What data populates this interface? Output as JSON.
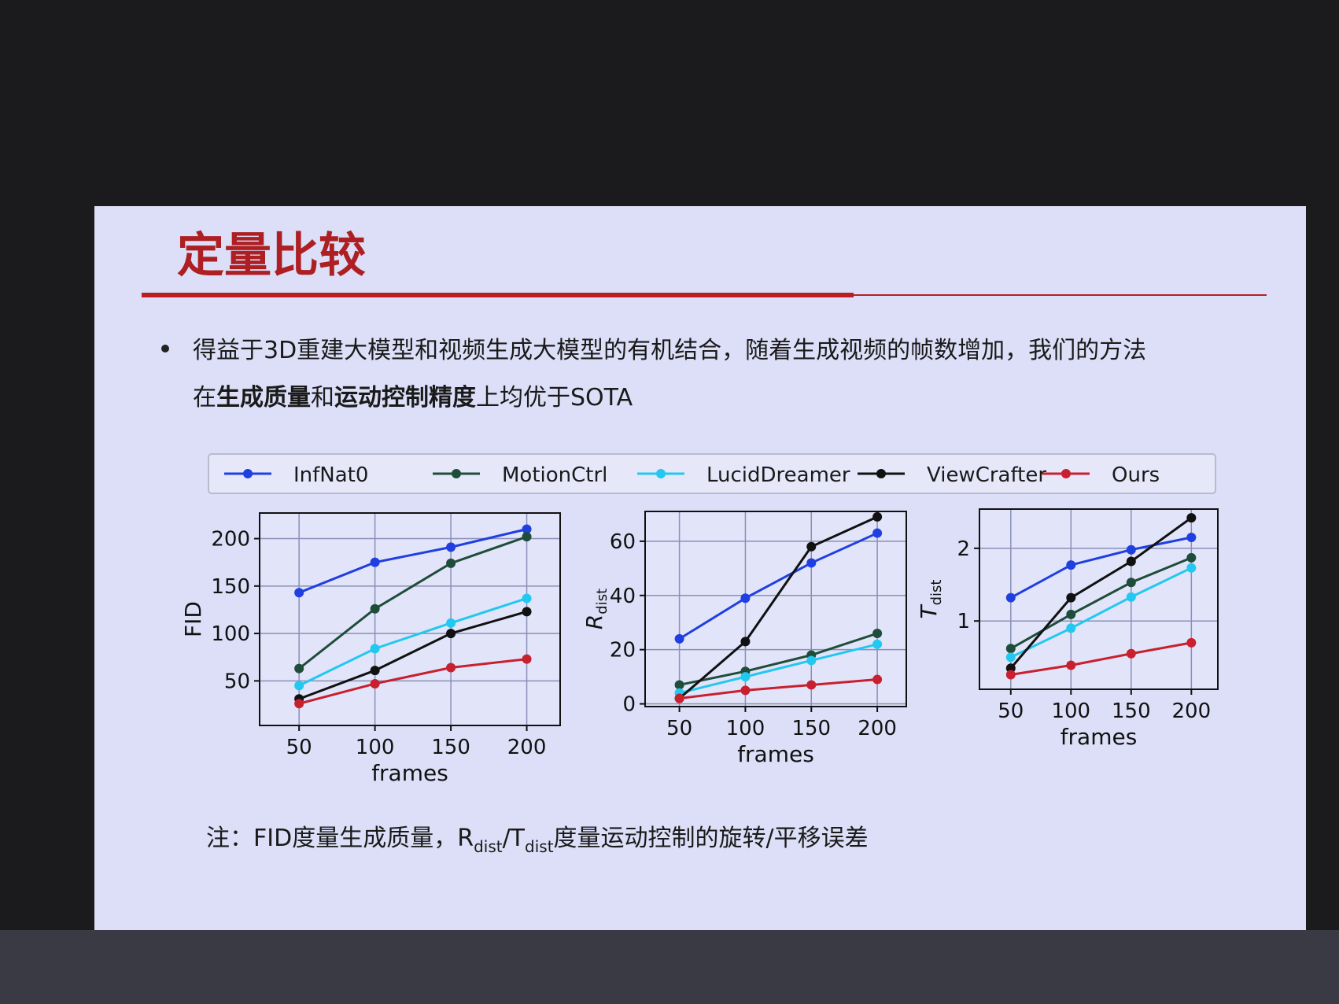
{
  "slide": {
    "title": "定量比较",
    "bullet": [
      {
        "text": "得益于3D重建大模型和视频生成大模型的有机结合，随着生成视频的帧数增加，我们的方法",
        "bold": false
      },
      {
        "text": "在",
        "bold": false
      },
      {
        "text": "生成质量",
        "bold": true
      },
      {
        "text": "和",
        "bold": false
      },
      {
        "text": "运动控制精度",
        "bold": true
      },
      {
        "text": "上均优于SOTA",
        "bold": false
      }
    ],
    "note": [
      {
        "text": "注：FID度量生成质量，R",
        "sub": false
      },
      {
        "text": "dist",
        "sub": true
      },
      {
        "text": "/T",
        "sub": false
      },
      {
        "text": "dist",
        "sub": true
      },
      {
        "text": "度量运动控制的旋转/平移误差",
        "sub": false
      }
    ]
  },
  "chart_data": [
    {
      "type": "line",
      "x_label": "frames",
      "y_label": "FID",
      "grid": true,
      "x": [
        50,
        100,
        150,
        200
      ],
      "xlim": [
        24,
        222
      ],
      "xticks": [
        50,
        100,
        150,
        200
      ],
      "ylim": [
        3,
        227
      ],
      "yticks": [
        50,
        100,
        150,
        200
      ],
      "series": [
        {
          "name": "InfNat0",
          "color": "#1f3fe0",
          "values": [
            143,
            175,
            191,
            210
          ]
        },
        {
          "name": "MotionCtrl",
          "color": "#1e4d3a",
          "values": [
            63,
            126,
            174,
            202
          ]
        },
        {
          "name": "LucidDreamer",
          "color": "#22c8f0",
          "values": [
            45,
            84,
            111,
            137
          ]
        },
        {
          "name": "ViewCrafter",
          "color": "#111111",
          "values": [
            31,
            61,
            100,
            123
          ]
        },
        {
          "name": "Ours",
          "color": "#c8202e",
          "values": [
            26,
            47,
            64,
            73
          ]
        }
      ]
    },
    {
      "type": "line",
      "x_label": "frames",
      "y_label": "R",
      "y_label_sub": "dist",
      "grid": true,
      "x": [
        50,
        100,
        150,
        200
      ],
      "xlim": [
        24,
        222
      ],
      "xticks": [
        50,
        100,
        150,
        200
      ],
      "ylim": [
        -1,
        71
      ],
      "yticks": [
        0,
        20,
        40,
        60
      ],
      "series": [
        {
          "color": "#1f3fe0",
          "values": [
            24,
            39,
            52,
            63
          ]
        },
        {
          "color": "#1e4d3a",
          "values": [
            7,
            12,
            18,
            26
          ]
        },
        {
          "color": "#22c8f0",
          "values": [
            4,
            10,
            16,
            22
          ]
        },
        {
          "color": "#111111",
          "values": [
            2,
            23,
            58,
            69
          ]
        },
        {
          "color": "#c8202e",
          "values": [
            2,
            5,
            7,
            9
          ]
        }
      ]
    },
    {
      "type": "line",
      "x_label": "frames",
      "y_label": "T",
      "y_label_sub": "dist",
      "grid": true,
      "x": [
        50,
        100,
        150,
        200
      ],
      "xlim": [
        24,
        222
      ],
      "xticks": [
        50,
        100,
        150,
        200
      ],
      "ylim": [
        0.06,
        2.54
      ],
      "yticks": [
        1,
        2
      ],
      "series": [
        {
          "color": "#1f3fe0",
          "values": [
            1.32,
            1.77,
            1.98,
            2.15
          ]
        },
        {
          "color": "#1e4d3a",
          "values": [
            0.62,
            1.09,
            1.53,
            1.87
          ]
        },
        {
          "color": "#22c8f0",
          "values": [
            0.5,
            0.9,
            1.33,
            1.73
          ]
        },
        {
          "color": "#111111",
          "values": [
            0.35,
            1.32,
            1.82,
            2.42
          ]
        },
        {
          "color": "#c8202e",
          "values": [
            0.26,
            0.39,
            0.55,
            0.7
          ]
        }
      ]
    }
  ]
}
